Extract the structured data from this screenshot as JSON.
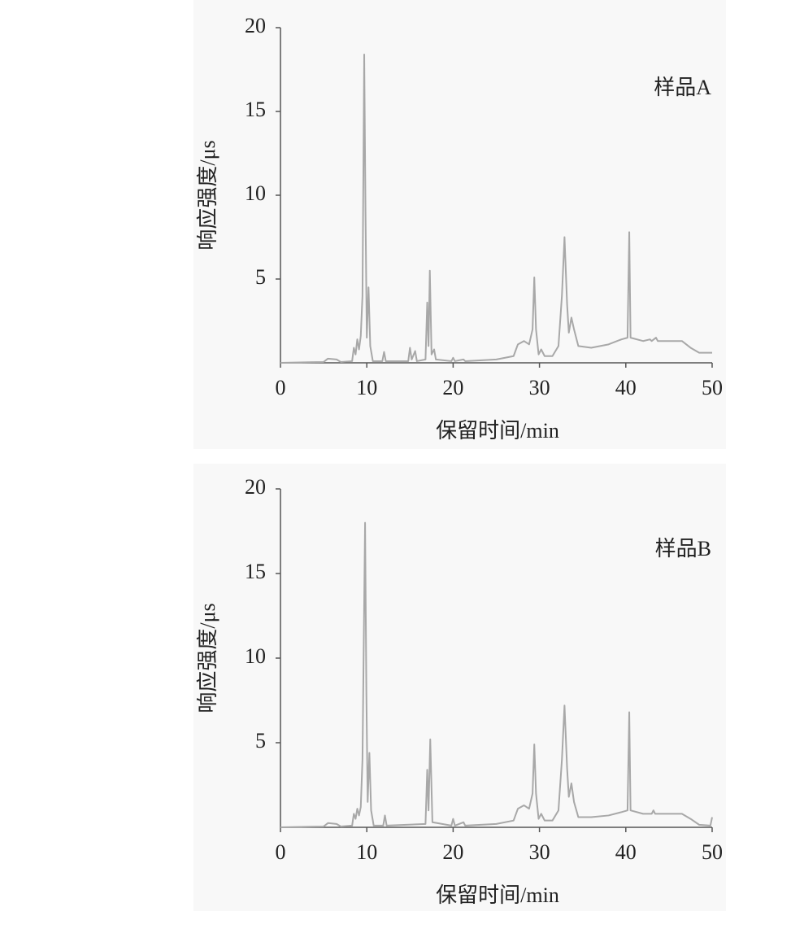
{
  "chart_data": [
    {
      "type": "line",
      "annotation": "样品A",
      "xlabel": "保留时间/min",
      "ylabel": "响应强度/μs",
      "xlim": [
        0,
        50
      ],
      "ylim": [
        0,
        20
      ],
      "xticks": [
        0,
        10,
        20,
        30,
        40,
        50
      ],
      "yticks": [
        5,
        10,
        15,
        20
      ],
      "color": "#a8a8a8",
      "x": [
        0,
        5,
        5.5,
        6.5,
        7,
        8.3,
        8.5,
        8.7,
        8.9,
        9.1,
        9.3,
        9.5,
        9.6,
        9.7,
        9.85,
        10,
        10.2,
        10.4,
        10.7,
        11.8,
        12,
        12.2,
        14.8,
        15,
        15.2,
        15.6,
        15.8,
        16.8,
        17,
        17.15,
        17.3,
        17.5,
        17.8,
        18,
        19.8,
        20,
        20.2,
        21.2,
        21.4,
        25,
        27,
        27.5,
        28.2,
        28.8,
        29.2,
        29.4,
        29.6,
        29.9,
        30.2,
        30.6,
        31.5,
        32.2,
        32.6,
        32.9,
        33.2,
        33.4,
        33.7,
        34,
        34.5,
        36,
        38,
        39.5,
        40.2,
        40.4,
        40.55,
        42,
        42.8,
        43,
        43.5,
        43.7,
        45,
        46.5,
        47.5,
        48.5,
        50
      ],
      "values": [
        0,
        0.05,
        0.25,
        0.2,
        0.05,
        0.1,
        0.9,
        0.5,
        1.4,
        0.8,
        1.6,
        4,
        11,
        18.4,
        9,
        1.5,
        4.5,
        1,
        0.1,
        0.1,
        0.65,
        0.1,
        0.1,
        0.9,
        0.2,
        0.7,
        0.1,
        0.2,
        3.6,
        1,
        5.5,
        0.5,
        0.8,
        0.2,
        0.1,
        0.3,
        0.1,
        0.2,
        0.1,
        0.2,
        0.4,
        1.1,
        1.3,
        1.1,
        2,
        5.1,
        2,
        0.5,
        0.8,
        0.4,
        0.4,
        1,
        4,
        7.5,
        3.5,
        1.8,
        2.7,
        2,
        1,
        0.9,
        1.1,
        1.4,
        1.5,
        7.8,
        1.5,
        1.3,
        1.4,
        1.3,
        1.5,
        1.3,
        1.3,
        1.3,
        0.9,
        0.6,
        0.6
      ]
    },
    {
      "type": "line",
      "annotation": "样品B",
      "xlabel": "保留时间/min",
      "ylabel": "响应强度/μs",
      "xlim": [
        0,
        50
      ],
      "ylim": [
        0,
        20
      ],
      "xticks": [
        0,
        10,
        20,
        30,
        40,
        50
      ],
      "yticks": [
        5,
        10,
        15,
        20
      ],
      "color": "#a8a8a8",
      "x": [
        0,
        5,
        5.5,
        6.5,
        7,
        8.3,
        8.5,
        8.7,
        8.9,
        9.1,
        9.3,
        9.5,
        9.65,
        9.8,
        9.95,
        10.1,
        10.3,
        10.5,
        10.8,
        11.9,
        12.1,
        12.3,
        16.8,
        17,
        17.15,
        17.35,
        17.6,
        19.8,
        20,
        20.2,
        21.2,
        21.4,
        25,
        27,
        27.5,
        28.2,
        28.8,
        29.2,
        29.4,
        29.6,
        29.9,
        30.2,
        30.6,
        31.5,
        32.2,
        32.6,
        32.9,
        33.2,
        33.4,
        33.7,
        34,
        34.5,
        36,
        38,
        39.5,
        40.2,
        40.4,
        40.55,
        42,
        43,
        43.2,
        43.4,
        45,
        46.5,
        47.5,
        48.5,
        49.8,
        50
      ],
      "values": [
        0,
        0.05,
        0.25,
        0.2,
        0.05,
        0.1,
        0.8,
        0.5,
        1.1,
        0.7,
        1.2,
        4,
        11,
        18,
        8,
        1.5,
        4.4,
        1,
        0.1,
        0.1,
        0.7,
        0.1,
        0.2,
        3.4,
        1,
        5.2,
        0.3,
        0.1,
        0.5,
        0.1,
        0.3,
        0.1,
        0.2,
        0.4,
        1.1,
        1.3,
        1.1,
        2,
        4.9,
        2,
        0.5,
        0.8,
        0.4,
        0.4,
        1,
        4,
        7.2,
        3.5,
        1.8,
        2.6,
        1.5,
        0.6,
        0.6,
        0.7,
        0.9,
        1,
        6.8,
        1,
        0.8,
        0.8,
        1,
        0.8,
        0.8,
        0.8,
        0.5,
        0.15,
        0.1,
        0.6
      ]
    }
  ]
}
